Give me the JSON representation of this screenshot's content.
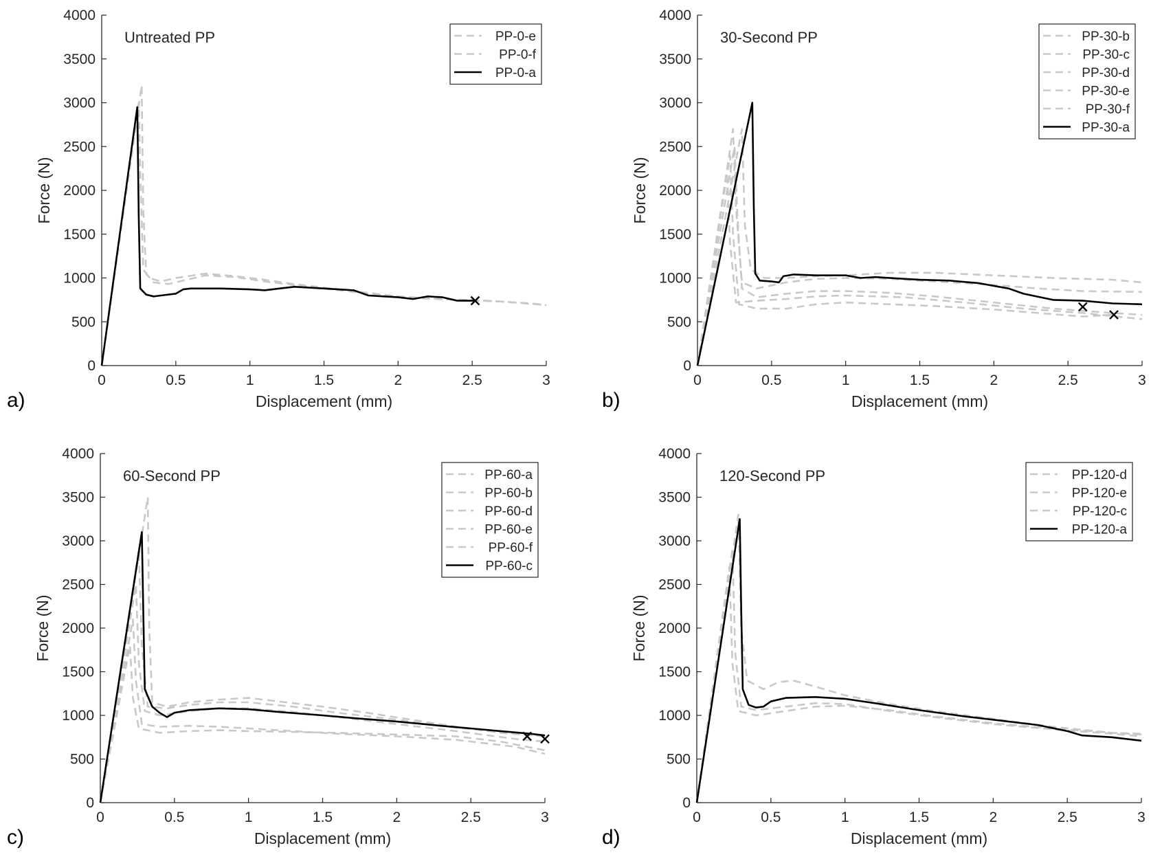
{
  "figure": {
    "panels": [
      "a)",
      "b)",
      "c)",
      "d)"
    ]
  },
  "colors": {
    "axis": "#262626",
    "reference_line": "#000000",
    "other_lines": "#c8c8c8"
  },
  "chart_data": [
    {
      "type": "line",
      "panel_label": "a)",
      "title": "Untreated PP",
      "xlabel": "Displacement (mm)",
      "ylabel": "Force (N)",
      "xlim": [
        0,
        3
      ],
      "ylim": [
        0,
        4000
      ],
      "xticks": [
        "0",
        "0.5",
        "1",
        "1.5",
        "2",
        "2.5",
        "3"
      ],
      "yticks": [
        "0",
        "500",
        "1000",
        "1500",
        "2000",
        "2500",
        "3000",
        "3500",
        "4000"
      ],
      "legend_position": "top-right",
      "series": [
        {
          "name": "PP-0-e",
          "style": "dashed",
          "x": [
            0,
            0.27,
            0.28,
            0.3,
            0.35,
            0.45,
            0.55,
            0.7,
            0.9,
            1.1,
            1.3,
            1.5,
            1.8,
            2.1,
            2.4,
            2.7,
            3.0
          ],
          "y": [
            0,
            3200,
            1800,
            1050,
            950,
            930,
            970,
            1030,
            1010,
            960,
            920,
            880,
            820,
            770,
            750,
            730,
            690
          ]
        },
        {
          "name": "PP-0-f",
          "style": "dashed",
          "x": [
            0,
            0.25,
            0.26,
            0.28,
            0.32,
            0.4,
            0.5,
            0.7,
            0.9,
            1.1,
            1.3,
            1.5,
            1.8,
            2.0,
            2.3,
            2.6,
            2.9,
            3.0
          ],
          "y": [
            0,
            3000,
            2200,
            1100,
            1000,
            960,
            1000,
            1050,
            1020,
            980,
            930,
            890,
            830,
            790,
            760,
            740,
            710,
            690
          ]
        },
        {
          "name": "PP-0-a",
          "style": "solid",
          "x": [
            0,
            0.24,
            0.25,
            0.26,
            0.3,
            0.35,
            0.4,
            0.5,
            0.55,
            0.6,
            0.8,
            1.0,
            1.1,
            1.2,
            1.3,
            1.5,
            1.7,
            1.75,
            1.8,
            2.0,
            2.1,
            2.2,
            2.3,
            2.4,
            2.52
          ],
          "y": [
            0,
            2950,
            1700,
            880,
            810,
            790,
            800,
            820,
            870,
            880,
            880,
            870,
            860,
            880,
            900,
            880,
            860,
            830,
            800,
            780,
            760,
            790,
            780,
            740,
            740
          ]
        }
      ],
      "end_markers": [
        {
          "x": 2.52,
          "y": 740
        }
      ]
    },
    {
      "type": "line",
      "panel_label": "b)",
      "title": "30-Second PP",
      "xlabel": "Displacement (mm)",
      "ylabel": "Force (N)",
      "xlim": [
        0,
        3
      ],
      "ylim": [
        0,
        4000
      ],
      "xticks": [
        "0",
        "0.5",
        "1",
        "1.5",
        "2",
        "2.5",
        "3"
      ],
      "yticks": [
        "0",
        "500",
        "1000",
        "1500",
        "2000",
        "2500",
        "3000",
        "3500",
        "4000"
      ],
      "legend_position": "top-right",
      "series": [
        {
          "name": "PP-30-b",
          "style": "dashed",
          "x": [
            0,
            0.24,
            0.26,
            0.3,
            0.4,
            0.6,
            0.8,
            1.0,
            1.3,
            1.6,
            2.0,
            2.3,
            2.6,
            3.0
          ],
          "y": [
            0,
            2700,
            1800,
            950,
            880,
            950,
            990,
            1000,
            990,
            960,
            920,
            880,
            850,
            840
          ]
        },
        {
          "name": "PP-30-c",
          "style": "dashed",
          "x": [
            0,
            0.22,
            0.24,
            0.28,
            0.4,
            0.6,
            0.8,
            1.0,
            1.3,
            1.6,
            2.0,
            2.3,
            2.6,
            2.8
          ],
          "y": [
            0,
            2400,
            1500,
            700,
            650,
            650,
            700,
            720,
            700,
            680,
            640,
            600,
            560,
            580
          ]
        },
        {
          "name": "PP-30-d",
          "style": "dashed",
          "x": [
            0,
            0.2,
            0.22,
            0.26,
            0.4,
            0.6,
            0.8,
            1.0,
            1.4,
            1.8,
            2.2,
            2.6,
            3.0
          ],
          "y": [
            0,
            2200,
            1400,
            720,
            740,
            760,
            790,
            800,
            780,
            720,
            650,
            600,
            530
          ]
        },
        {
          "name": "PP-30-e",
          "style": "dashed",
          "x": [
            0,
            0.25,
            0.27,
            0.3,
            0.4,
            0.6,
            0.8,
            1.0,
            1.3,
            1.6,
            2.0,
            2.4,
            2.8,
            3.0
          ],
          "y": [
            0,
            2500,
            1700,
            880,
            780,
            820,
            850,
            850,
            830,
            790,
            720,
            650,
            600,
            580
          ]
        },
        {
          "name": "PP-30-f",
          "style": "dashed",
          "x": [
            0,
            0.3,
            0.32,
            0.36,
            0.45,
            0.6,
            0.8,
            1.0,
            1.3,
            1.6,
            2.0,
            2.4,
            2.8,
            3.0
          ],
          "y": [
            0,
            2700,
            1600,
            1100,
            1000,
            1000,
            1020,
            1030,
            1060,
            1060,
            1030,
            1000,
            980,
            950
          ]
        },
        {
          "name": "PP-30-a",
          "style": "solid",
          "x": [
            0,
            0.37,
            0.38,
            0.39,
            0.42,
            0.5,
            0.55,
            0.58,
            0.65,
            0.8,
            1.0,
            1.1,
            1.2,
            1.4,
            1.5,
            1.7,
            1.9,
            2.0,
            2.1,
            2.2,
            2.4,
            2.6,
            2.8,
            3.0
          ],
          "y": [
            0,
            3000,
            1800,
            1050,
            970,
            960,
            950,
            1020,
            1040,
            1030,
            1030,
            1000,
            1010,
            990,
            980,
            970,
            940,
            910,
            880,
            820,
            750,
            740,
            710,
            700
          ]
        }
      ],
      "end_markers": [
        {
          "x": 2.6,
          "y": 670
        },
        {
          "x": 2.81,
          "y": 580
        }
      ]
    },
    {
      "type": "line",
      "panel_label": "c)",
      "title": "60-Second PP",
      "xlabel": "Displacement (mm)",
      "ylabel": "Force (N)",
      "xlim": [
        0,
        3
      ],
      "ylim": [
        0,
        4000
      ],
      "xticks": [
        "0",
        "0.5",
        "1",
        "1.5",
        "2",
        "2.5",
        "3"
      ],
      "yticks": [
        "0",
        "500",
        "1000",
        "1500",
        "2000",
        "2500",
        "3000",
        "3500",
        "4000"
      ],
      "legend_position": "top-right",
      "series": [
        {
          "name": "PP-60-a",
          "style": "dashed",
          "x": [
            0,
            0.32,
            0.33,
            0.35,
            0.45,
            0.6,
            0.8,
            1.0,
            1.2,
            1.5,
            1.8,
            2.1,
            2.4,
            2.7,
            3.0
          ],
          "y": [
            0,
            3500,
            2000,
            1150,
            1100,
            1150,
            1180,
            1200,
            1160,
            1100,
            1030,
            950,
            870,
            800,
            760
          ]
        },
        {
          "name": "PP-60-b",
          "style": "dashed",
          "x": [
            0,
            0.2,
            0.22,
            0.26,
            0.4,
            0.6,
            0.8,
            1.0,
            1.3,
            1.6,
            2.0,
            2.4,
            2.7,
            3.0
          ],
          "y": [
            0,
            1800,
            1200,
            850,
            800,
            820,
            830,
            820,
            810,
            800,
            780,
            760,
            700,
            600
          ]
        },
        {
          "name": "PP-60-d",
          "style": "dashed",
          "x": [
            0,
            0.24,
            0.26,
            0.3,
            0.4,
            0.6,
            0.8,
            1.0,
            1.3,
            1.6,
            2.0,
            2.4,
            2.8,
            3.0
          ],
          "y": [
            0,
            2500,
            1600,
            1050,
            1000,
            1050,
            1080,
            1080,
            1040,
            980,
            900,
            820,
            730,
            700
          ]
        },
        {
          "name": "PP-60-e",
          "style": "dashed",
          "x": [
            0,
            0.22,
            0.24,
            0.28,
            0.4,
            0.6,
            0.8,
            1.0,
            1.3,
            1.6,
            2.0,
            2.4,
            2.8,
            3.0
          ],
          "y": [
            0,
            2100,
            1400,
            900,
            870,
            880,
            870,
            850,
            820,
            790,
            760,
            720,
            640,
            560
          ]
        },
        {
          "name": "PP-60-f",
          "style": "dashed",
          "x": [
            0,
            0.26,
            0.28,
            0.32,
            0.45,
            0.6,
            0.8,
            1.0,
            1.3,
            1.6,
            2.0,
            2.4,
            2.8,
            3.0
          ],
          "y": [
            0,
            2900,
            1800,
            1100,
            1080,
            1120,
            1150,
            1150,
            1100,
            1030,
            950,
            860,
            790,
            760
          ]
        },
        {
          "name": "PP-60-c",
          "style": "solid",
          "x": [
            0,
            0.28,
            0.29,
            0.3,
            0.35,
            0.4,
            0.45,
            0.5,
            0.6,
            0.8,
            1.0,
            1.2,
            1.5,
            1.7,
            2.0,
            2.3,
            2.5,
            2.7,
            2.9,
            3.0
          ],
          "y": [
            0,
            3100,
            2200,
            1300,
            1100,
            1030,
            980,
            1030,
            1060,
            1080,
            1070,
            1040,
            1000,
            970,
            930,
            880,
            850,
            820,
            790,
            770
          ]
        }
      ],
      "end_markers": [
        {
          "x": 2.88,
          "y": 760
        },
        {
          "x": 3.0,
          "y": 730
        }
      ]
    },
    {
      "type": "line",
      "panel_label": "d)",
      "title": "120-Second PP",
      "xlabel": "Displacement (mm)",
      "ylabel": "Force (N)",
      "xlim": [
        0,
        3
      ],
      "ylim": [
        0,
        4000
      ],
      "xticks": [
        "0",
        "0.5",
        "1",
        "1.5",
        "2",
        "2.5",
        "3"
      ],
      "yticks": [
        "0",
        "500",
        "1000",
        "1500",
        "2000",
        "2500",
        "3000",
        "3500",
        "4000"
      ],
      "legend_position": "top-right",
      "series": [
        {
          "name": "PP-120-d",
          "style": "dashed",
          "x": [
            0,
            0.28,
            0.3,
            0.34,
            0.45,
            0.55,
            0.65,
            0.8,
            1.0,
            1.3,
            1.6,
            2.0,
            2.4,
            2.8,
            3.0
          ],
          "y": [
            0,
            3300,
            2000,
            1400,
            1300,
            1380,
            1400,
            1330,
            1230,
            1130,
            1050,
            960,
            870,
            800,
            780
          ]
        },
        {
          "name": "PP-120-e",
          "style": "dashed",
          "x": [
            0,
            0.24,
            0.26,
            0.3,
            0.4,
            0.6,
            0.8,
            1.0,
            1.3,
            1.6,
            2.0,
            2.4,
            2.8,
            3.0
          ],
          "y": [
            0,
            2900,
            1700,
            1100,
            1060,
            1100,
            1140,
            1130,
            1050,
            980,
            900,
            840,
            790,
            760
          ]
        },
        {
          "name": "PP-120-c",
          "style": "dashed",
          "x": [
            0,
            0.22,
            0.24,
            0.28,
            0.4,
            0.6,
            0.8,
            1.0,
            1.3,
            1.6,
            2.0,
            2.4,
            2.8,
            3.0
          ],
          "y": [
            0,
            2700,
            1600,
            1050,
            1000,
            1050,
            1100,
            1110,
            1060,
            990,
            910,
            850,
            800,
            790
          ]
        },
        {
          "name": "PP-120-a",
          "style": "solid",
          "x": [
            0,
            0.29,
            0.3,
            0.31,
            0.35,
            0.4,
            0.45,
            0.5,
            0.6,
            0.8,
            1.0,
            1.2,
            1.5,
            1.8,
            2.0,
            2.3,
            2.5,
            2.6,
            2.8,
            3.0
          ],
          "y": [
            0,
            3250,
            2200,
            1300,
            1120,
            1090,
            1100,
            1160,
            1200,
            1210,
            1190,
            1140,
            1060,
            990,
            950,
            890,
            820,
            770,
            750,
            710
          ]
        }
      ],
      "end_markers": []
    }
  ]
}
